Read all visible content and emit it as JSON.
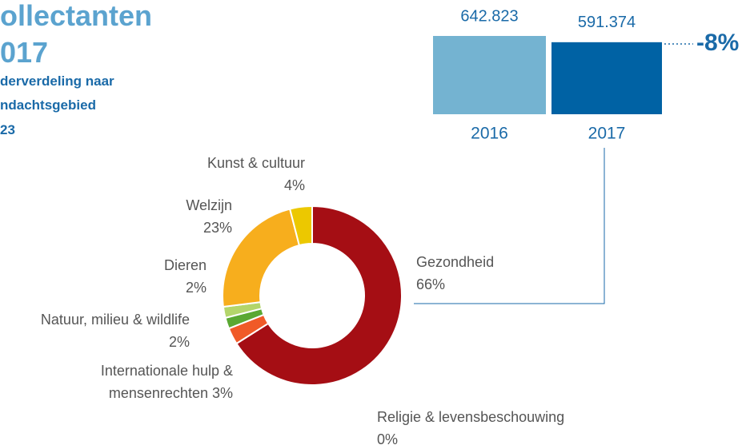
{
  "title_lines": [
    "ollectanten",
    "017"
  ],
  "subtitle_lines": [
    "derverdeling naar",
    "ndachtsgebied",
    "23"
  ],
  "chart_data": [
    {
      "type": "pie",
      "categories": [
        "Gezondheid",
        "Religie & levensbeschouwing",
        "Internationale hulp & mensenrechten",
        "Natuur, milieu & wildlife",
        "Dieren",
        "Welzijn",
        "Kunst & cultuur"
      ],
      "values": [
        66,
        0,
        3,
        2,
        2,
        23,
        4
      ],
      "value_labels": [
        "66%",
        "0%",
        "3%",
        "2%",
        "2%",
        "23%",
        "4%"
      ],
      "colors": [
        "#a50e14",
        "#7a1a5a",
        "#f05a28",
        "#5aa832",
        "#b3d56a",
        "#f7ae1d",
        "#ecc800"
      ]
    },
    {
      "type": "bar",
      "categories": [
        "2016",
        "2017"
      ],
      "values": [
        642823,
        591374
      ],
      "value_labels": [
        "642.823",
        "591.374"
      ],
      "colors": [
        "#74b3d1",
        "#0062a4"
      ],
      "annotation": "-8%"
    }
  ]
}
